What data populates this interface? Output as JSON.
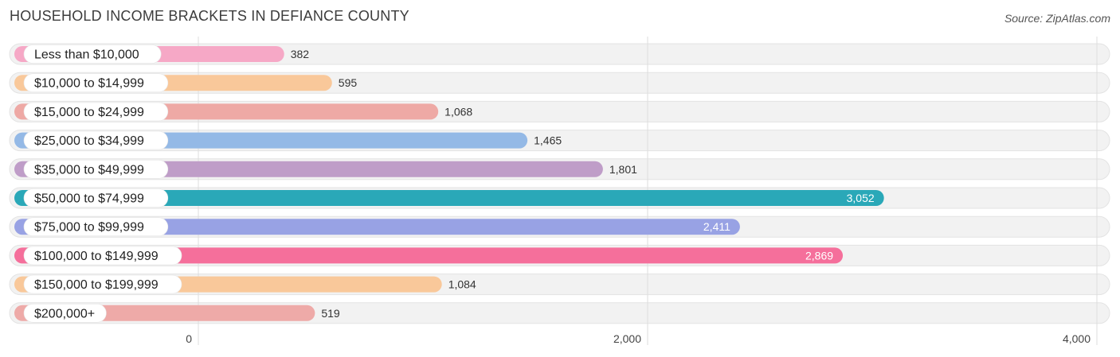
{
  "title": "HOUSEHOLD INCOME BRACKETS IN DEFIANCE COUNTY",
  "source": "Source: ZipAtlas.com",
  "chart_data": {
    "type": "bar",
    "orientation": "horizontal",
    "categories": [
      "Less than $10,000",
      "$10,000 to $14,999",
      "$15,000 to $24,999",
      "$25,000 to $34,999",
      "$35,000 to $49,999",
      "$50,000 to $74,999",
      "$75,000 to $99,999",
      "$100,000 to $149,999",
      "$150,000 to $199,999",
      "$200,000+"
    ],
    "values": [
      382,
      595,
      1068,
      1465,
      1801,
      3052,
      2411,
      2869,
      1084,
      519
    ],
    "value_labels": [
      "382",
      "595",
      "1,068",
      "1,465",
      "1,801",
      "3,052",
      "2,411",
      "2,869",
      "1,084",
      "519"
    ],
    "colors": [
      "#f6a8c6",
      "#f9c89a",
      "#eea9a5",
      "#94b9e6",
      "#bf9dc8",
      "#2aa8b8",
      "#98a2e4",
      "#f56f9b",
      "#f9c89a",
      "#eeaaa8"
    ],
    "xlim": [
      0,
      4000
    ],
    "ticks": [
      0,
      2000,
      4000
    ],
    "tick_labels": [
      "0",
      "2,000",
      "4,000"
    ],
    "grid": true
  }
}
